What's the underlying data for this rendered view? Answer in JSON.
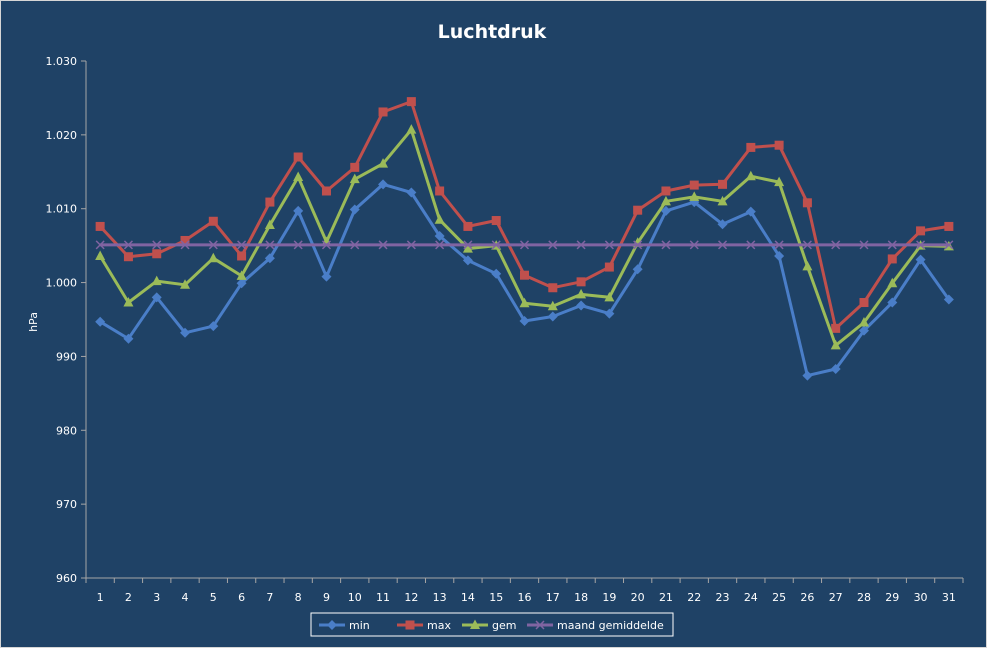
{
  "chart_data": {
    "type": "line",
    "title": "Luchtdruk",
    "xlabel": "",
    "ylabel": "hPa",
    "ylim": [
      960,
      1030
    ],
    "yticks": [
      960,
      970,
      980,
      990,
      1000,
      1010,
      1020,
      1030
    ],
    "ytick_labels": [
      "960",
      "970",
      "980",
      "990",
      "1.000",
      "1.010",
      "1.020",
      "1.030"
    ],
    "categories": [
      "1",
      "2",
      "3",
      "4",
      "5",
      "6",
      "7",
      "8",
      "9",
      "10",
      "11",
      "12",
      "13",
      "14",
      "15",
      "16",
      "17",
      "18",
      "19",
      "20",
      "21",
      "22",
      "23",
      "24",
      "25",
      "26",
      "27",
      "28",
      "29",
      "30",
      "31"
    ],
    "grid": false,
    "legend_position": "bottom",
    "colors": {
      "background": "#1f4266",
      "frame": "#d6d6d6",
      "axis": "#a6a6a6"
    },
    "series": [
      {
        "name": "min",
        "color": "#4a7ec8",
        "marker": "diamond",
        "values": [
          994.7,
          992.4,
          998.0,
          993.2,
          994.1,
          999.9,
          1003.3,
          1009.7,
          1000.8,
          1009.9,
          1013.3,
          1012.2,
          1006.3,
          1003.0,
          1001.2,
          994.8,
          995.4,
          996.9,
          995.8,
          1001.8,
          1009.7,
          1010.9,
          1007.9,
          1009.6,
          1003.6,
          987.4,
          988.3,
          993.5,
          997.3,
          1003.1,
          997.7
        ]
      },
      {
        "name": "max",
        "color": "#c0504d",
        "marker": "square",
        "values": [
          1007.6,
          1003.5,
          1003.9,
          1005.7,
          1008.3,
          1003.6,
          1010.9,
          1017.0,
          1012.4,
          1015.6,
          1023.1,
          1024.5,
          1012.4,
          1007.6,
          1008.4,
          1001.0,
          999.3,
          1000.1,
          1002.1,
          1009.8,
          1012.4,
          1013.2,
          1013.3,
          1018.3,
          1018.6,
          1010.8,
          993.8,
          997.3,
          1003.2,
          1007.0,
          1007.6
        ]
      },
      {
        "name": "gem",
        "color": "#9bbb59",
        "marker": "triangle",
        "values": [
          1003.6,
          997.3,
          1000.2,
          999.7,
          1003.3,
          1000.9,
          1007.8,
          1014.3,
          1005.5,
          1014.0,
          1016.1,
          1020.7,
          1008.5,
          1004.6,
          1005.0,
          997.2,
          996.8,
          998.4,
          998.0,
          1005.4,
          1011.0,
          1011.6,
          1011.0,
          1014.4,
          1013.6,
          1002.2,
          991.5,
          994.6,
          999.9,
          1005.0,
          1004.9
        ]
      },
      {
        "name": "maand gemiddelde",
        "color": "#8064a2",
        "marker": "x",
        "values": [
          1005.1,
          1005.1,
          1005.1,
          1005.1,
          1005.1,
          1005.1,
          1005.1,
          1005.1,
          1005.1,
          1005.1,
          1005.1,
          1005.1,
          1005.1,
          1005.1,
          1005.1,
          1005.1,
          1005.1,
          1005.1,
          1005.1,
          1005.1,
          1005.1,
          1005.1,
          1005.1,
          1005.1,
          1005.1,
          1005.1,
          1005.1,
          1005.1,
          1005.1,
          1005.1,
          1005.1
        ]
      }
    ]
  }
}
